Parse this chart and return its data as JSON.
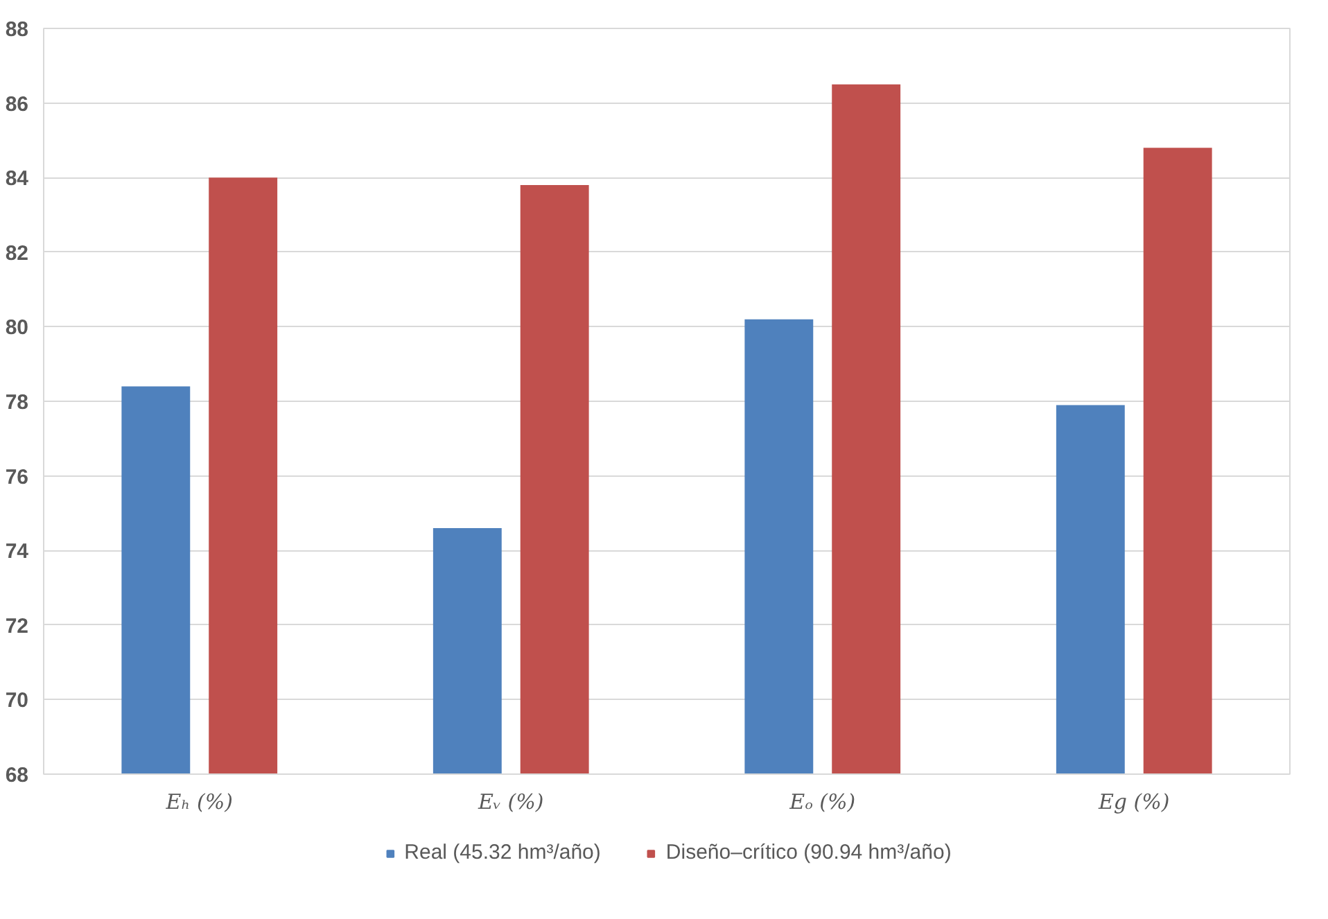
{
  "chart_data": {
    "type": "bar",
    "categories": [
      "Eₕ (%)",
      "Eᵥ (%)",
      "Eₒ (%)",
      "Eg (%)"
    ],
    "series": [
      {
        "name": "Real (45.32 hm³/año)",
        "color": "#4f81bd",
        "values": [
          78.4,
          74.6,
          80.2,
          77.9
        ]
      },
      {
        "name": "Diseño–crítico (90.94 hm³/año)",
        "color": "#c0504d",
        "values": [
          84.0,
          83.8,
          86.5,
          84.8
        ]
      }
    ],
    "ylim": [
      68,
      88
    ],
    "yticks": [
      68,
      70,
      72,
      74,
      76,
      78,
      80,
      82,
      84,
      86,
      88
    ],
    "grid": "y",
    "legend": "bottom"
  }
}
